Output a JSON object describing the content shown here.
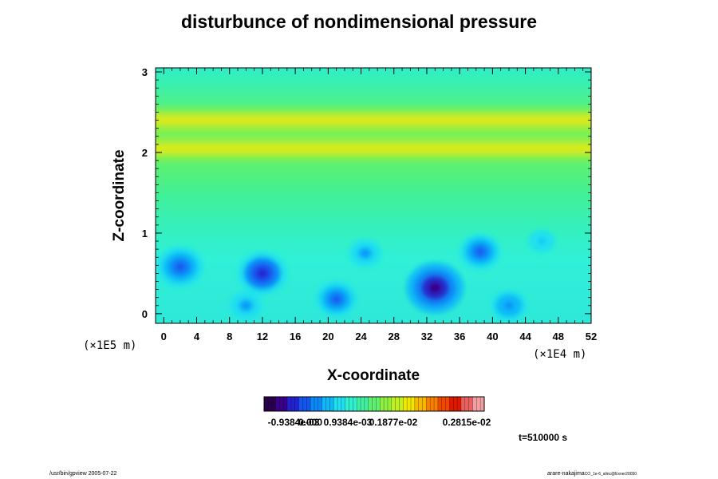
{
  "chart_data": {
    "type": "heatmap",
    "title": "disturbunce of nondimensional pressure",
    "xlabel": "X-coordinate",
    "ylabel": "Z-coordinate",
    "x_multiplier": "(×1E4 m)",
    "y_multiplier": "(×1E5 m)",
    "xlim": [
      -1,
      52
    ],
    "ylim": [
      -0.12,
      3.05
    ],
    "x_ticks": [
      0,
      4,
      8,
      12,
      16,
      20,
      24,
      28,
      32,
      36,
      40,
      44,
      48,
      52
    ],
    "y_ticks": [
      0,
      1,
      2,
      3
    ],
    "colorbar": {
      "range": [
        -0.00188,
        0.00301
      ],
      "tick_labels": [
        "-0.9384e-03",
        "0.000",
        "0.9384e-03",
        "0.1877e-02",
        "0.2815e-02"
      ],
      "colors": [
        "#2a004d",
        "#3a008a",
        "#2222d0",
        "#1455f0",
        "#0a88f8",
        "#10b8f8",
        "#20e0f0",
        "#30f0d0",
        "#40f0a0",
        "#60f070",
        "#90f040",
        "#c0f020",
        "#f0e800",
        "#f8b800",
        "#f88000",
        "#f04800",
        "#e01800",
        "#e86060",
        "#f0a0a0"
      ]
    },
    "timestamp": "t=510000 s",
    "bands": [
      {
        "z": 2.05,
        "value": 0.0013
      },
      {
        "z": 2.4,
        "value": 0.0013
      }
    ],
    "minima": [
      {
        "x": 2,
        "z": 0.58,
        "value": -0.0011
      },
      {
        "x": 12,
        "z": 0.5,
        "value": -0.0012
      },
      {
        "x": 21,
        "z": 0.18,
        "value": -0.0009
      },
      {
        "x": 33,
        "z": 0.32,
        "value": -0.0015
      },
      {
        "x": 38.5,
        "z": 0.77,
        "value": -0.0009
      },
      {
        "x": 42,
        "z": 0.1,
        "value": -0.0007
      },
      {
        "x": 10,
        "z": 0.1,
        "value": -0.0006
      },
      {
        "x": 24.5,
        "z": 0.75,
        "value": -0.0006
      },
      {
        "x": 46,
        "z": 0.9,
        "value": -0.0004
      }
    ]
  },
  "footer": {
    "left": "/usr/bin/gpview 2005-07-22",
    "right": "arare-nakajima",
    "right_sub": "CO_1e-6_alinc@Exner20050"
  }
}
